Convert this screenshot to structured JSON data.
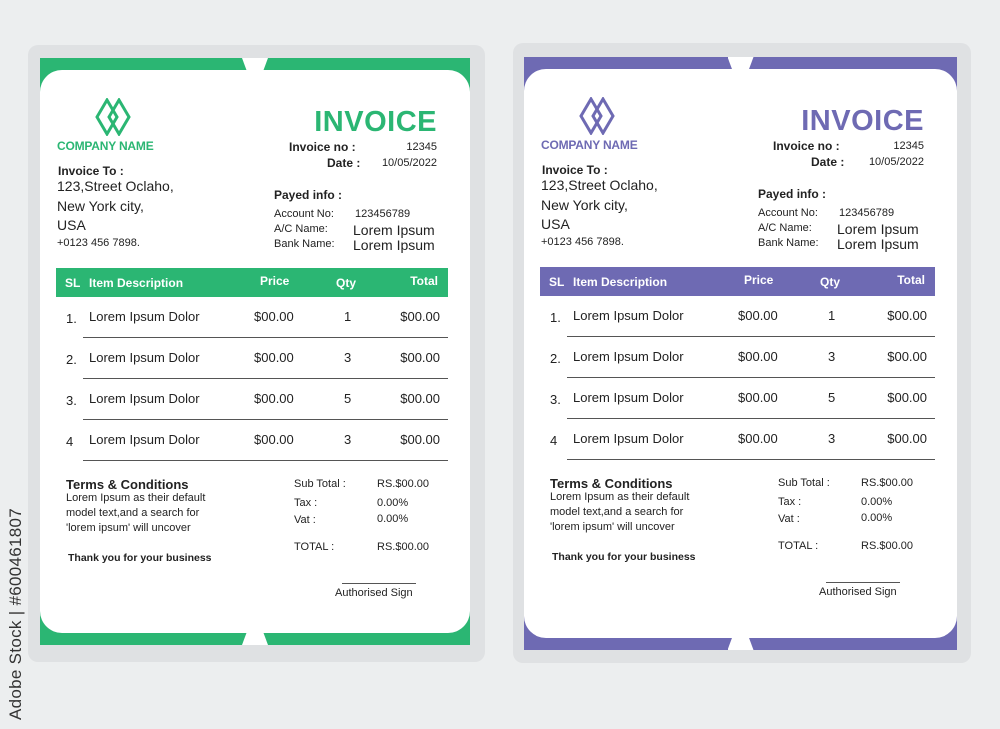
{
  "watermark": "Adobe Stock | #600461807",
  "invoices": [
    {
      "accent": "#2bb673",
      "company_name": "COMPANY NAME",
      "title": "INVOICE",
      "invoice_no_label": "Invoice no :",
      "invoice_no": "12345",
      "date_label": "Date :",
      "date": "10/05/2022",
      "invoice_to_label": "Invoice To :",
      "address": [
        "123,Street  Oclaho,",
        "New  York  city,",
        "USA"
      ],
      "phone": "+0123  456  7898.",
      "payed_info_label": "Payed info :",
      "account_no_label": "Account  No:",
      "account_no": "123456789",
      "ac_name_label": "A/C  Name:",
      "ac_name": "Lorem  Ipsum",
      "bank_name_label": "Bank  Name:",
      "bank_name": "Lorem  Ipsum",
      "columns": [
        "SL",
        "Item Description",
        "Price",
        "Qty",
        "Total"
      ],
      "rows": [
        {
          "sl": "1.",
          "desc": "Lorem  Ipsum  Dolor",
          "price": "$00.00",
          "qty": "1",
          "total": "$00.00"
        },
        {
          "sl": "2.",
          "desc": "Lorem  Ipsum  Dolor",
          "price": "$00.00",
          "qty": "3",
          "total": "$00.00"
        },
        {
          "sl": "3.",
          "desc": "Lorem  Ipsum  Dolor",
          "price": "$00.00",
          "qty": "5",
          "total": "$00.00"
        },
        {
          "sl": "4",
          "desc": "Lorem  Ipsum  Dolor",
          "price": "$00.00",
          "qty": "3",
          "total": "$00.00"
        }
      ],
      "terms_title": "Terms & Conditions",
      "terms_lines": [
        "Lorem  Ipsum  as  their  default",
        "model  text,and  a  search  for",
        "'lorem  ipsum'  will  uncover"
      ],
      "thanks": "Thank you for your business",
      "subtotal_label": "Sub  Total  :",
      "subtotal": "RS.$00.00",
      "tax_label": "Tax  :",
      "tax": "0.00%",
      "vat_label": "Vat  :",
      "vat": "0.00%",
      "total_label": "TOTAL  :",
      "total": "RS.$00.00",
      "sign": "Authorised  Sign"
    },
    {
      "accent": "#6e6ab3",
      "company_name": "COMPANY NAME",
      "title": "INVOICE",
      "invoice_no_label": "Invoice no :",
      "invoice_no": "12345",
      "date_label": "Date :",
      "date": "10/05/2022",
      "invoice_to_label": "Invoice To :",
      "address": [
        "123,Street  Oclaho,",
        "New  York  city,",
        "USA"
      ],
      "phone": "+0123  456  7898.",
      "payed_info_label": "Payed info :",
      "account_no_label": "Account  No:",
      "account_no": "123456789",
      "ac_name_label": "A/C  Name:",
      "ac_name": "Lorem  Ipsum",
      "bank_name_label": "Bank  Name:",
      "bank_name": "Lorem  Ipsum",
      "columns": [
        "SL",
        "Item Description",
        "Price",
        "Qty",
        "Total"
      ],
      "rows": [
        {
          "sl": "1.",
          "desc": "Lorem  Ipsum  Dolor",
          "price": "$00.00",
          "qty": "1",
          "total": "$00.00"
        },
        {
          "sl": "2.",
          "desc": "Lorem  Ipsum  Dolor",
          "price": "$00.00",
          "qty": "3",
          "total": "$00.00"
        },
        {
          "sl": "3.",
          "desc": "Lorem  Ipsum  Dolor",
          "price": "$00.00",
          "qty": "5",
          "total": "$00.00"
        },
        {
          "sl": "4",
          "desc": "Lorem  Ipsum  Dolor",
          "price": "$00.00",
          "qty": "3",
          "total": "$00.00"
        }
      ],
      "terms_title": "Terms & Conditions",
      "terms_lines": [
        "Lorem  Ipsum  as  their  default",
        "model  text,and  a  search  for",
        "'lorem  ipsum'  will  uncover"
      ],
      "thanks": "Thank you for your business",
      "subtotal_label": "Sub  Total  :",
      "subtotal": "RS.$00.00",
      "tax_label": "Tax  :",
      "tax": "0.00%",
      "vat_label": "Vat  :",
      "vat": "0.00%",
      "total_label": "TOTAL  :",
      "total": "RS.$00.00",
      "sign": "Authorised  Sign"
    }
  ]
}
